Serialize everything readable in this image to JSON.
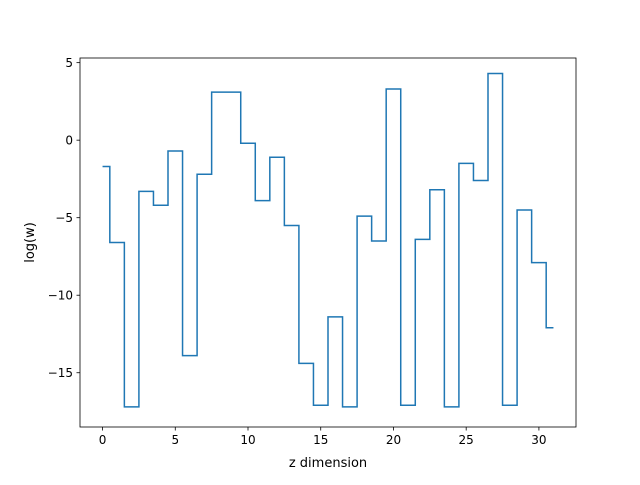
{
  "chart_data": {
    "type": "line",
    "drawstyle": "steps-mid",
    "xlabel": "z dimension",
    "ylabel": "log(w)",
    "xlim": [
      -1.55,
      32.55
    ],
    "ylim": [
      -18.5,
      5.3
    ],
    "xticks": [
      0,
      5,
      10,
      15,
      20,
      25,
      30
    ],
    "yticks": [
      5,
      0,
      -5,
      -10,
      -15
    ],
    "xtick_labels": [
      "0",
      "5",
      "10",
      "15",
      "20",
      "25",
      "30"
    ],
    "ytick_labels": [
      "5",
      "0",
      "−5",
      "−10",
      "−15"
    ],
    "grid": false,
    "series": [
      {
        "color": "#1f77b4",
        "x": [
          0,
          1,
          2,
          3,
          4,
          5,
          6,
          7,
          8,
          9,
          10,
          11,
          12,
          13,
          14,
          15,
          16,
          17,
          18,
          19,
          20,
          21,
          22,
          23,
          24,
          25,
          26,
          27,
          28,
          29,
          30,
          31
        ],
        "y": [
          -1.7,
          -6.6,
          -17.2,
          -3.3,
          -4.2,
          -0.7,
          -13.9,
          -2.2,
          3.1,
          3.1,
          -0.2,
          -3.9,
          -1.1,
          -5.5,
          -14.4,
          -17.1,
          -11.4,
          -17.2,
          -4.9,
          -6.5,
          3.3,
          -17.1,
          -6.4,
          -3.2,
          -17.2,
          -1.5,
          -2.6,
          4.3,
          -17.1,
          -4.5,
          -7.9,
          -12.1
        ]
      }
    ]
  }
}
